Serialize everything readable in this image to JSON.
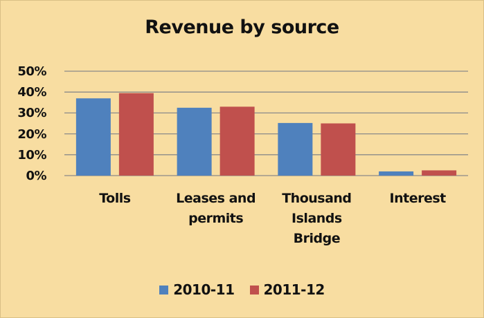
{
  "chart_data": {
    "type": "bar",
    "title": "Revenue by source",
    "categories": [
      "Tolls",
      "Leases and permits",
      "Thousand Islands Bridge",
      "Interest"
    ],
    "series": [
      {
        "name": "2010-11",
        "color": "#4f81bd",
        "values": [
          37,
          32.5,
          25.2,
          2
        ]
      },
      {
        "name": "2011-12",
        "color": "#c0504d",
        "values": [
          39.5,
          33,
          25,
          2.5
        ]
      }
    ],
    "ylim": [
      0,
      50
    ],
    "yticks": [
      {
        "value": 0,
        "label": "0%"
      },
      {
        "value": 10,
        "label": "10%"
      },
      {
        "value": 20,
        "label": "20%"
      },
      {
        "value": 30,
        "label": "30%"
      },
      {
        "value": 40,
        "label": "40%"
      },
      {
        "value": 50,
        "label": "50%"
      }
    ],
    "grid": true,
    "legend": "bottom"
  }
}
